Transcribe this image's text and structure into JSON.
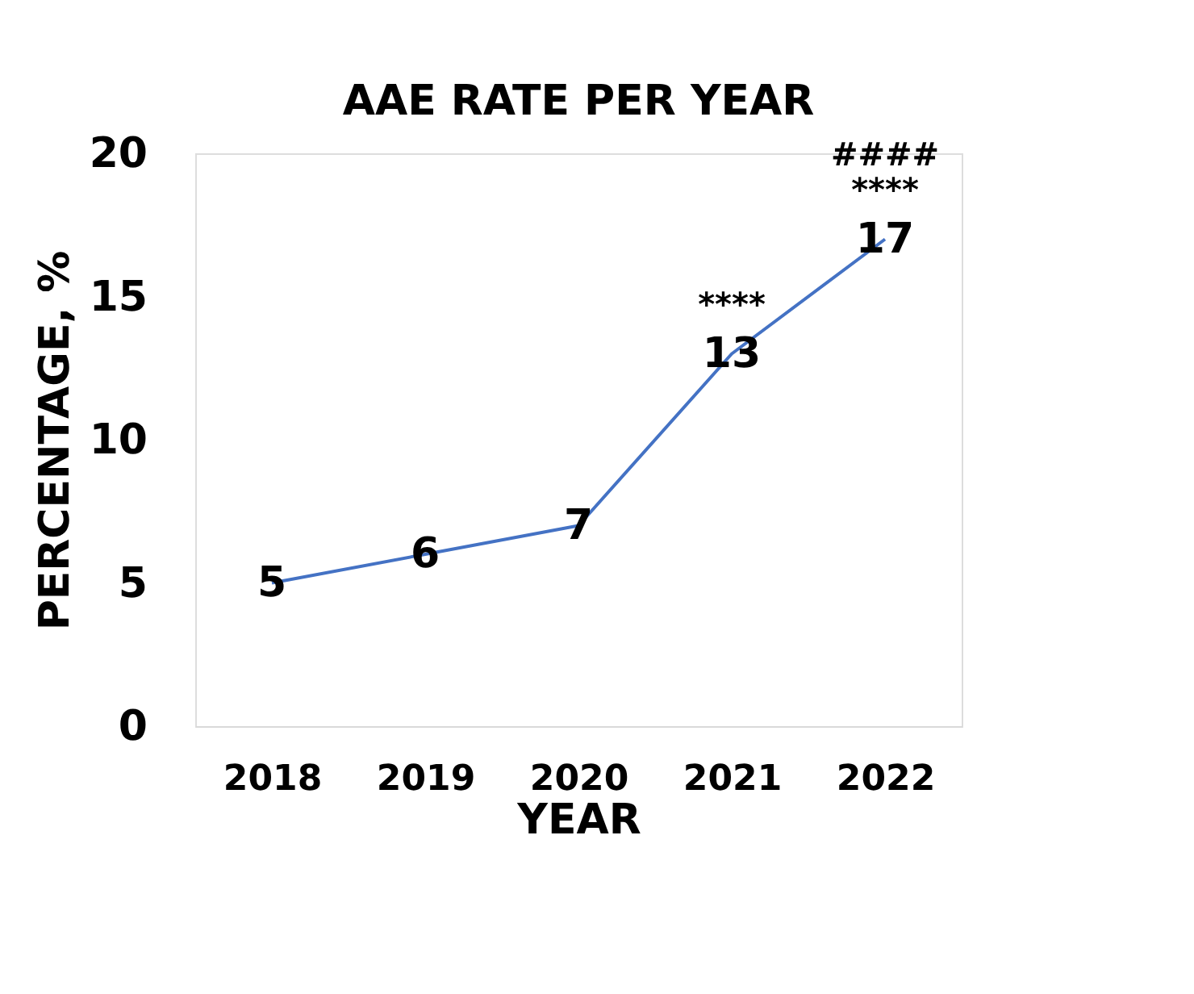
{
  "chart_data": {
    "type": "line",
    "title": "AAE RATE PER YEAR",
    "xlabel": "YEAR",
    "ylabel": "PERCENTAGE, %",
    "categories": [
      "2018",
      "2019",
      "2020",
      "2021",
      "2022"
    ],
    "series": [
      {
        "color": "#4472c4",
        "values": [
          5,
          6,
          7,
          13,
          17
        ]
      }
    ],
    "ylim": [
      0,
      20
    ],
    "yticks": [
      0,
      5,
      10,
      15,
      20
    ],
    "grid": false,
    "data_labels": true,
    "marker": "none",
    "line_style": "solid",
    "annotations": [
      {
        "text": "****",
        "x": "2021",
        "y": 13
      },
      {
        "text": "****",
        "x": "2022",
        "y": 17
      },
      {
        "text": "####",
        "x": "2022",
        "y": 17
      }
    ]
  }
}
